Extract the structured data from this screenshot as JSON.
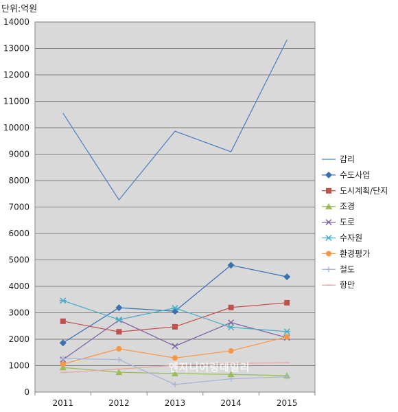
{
  "unit_label": "단위:억원",
  "watermark": "엔지니어링데일리",
  "chart_data": {
    "type": "line",
    "categories": [
      "2011",
      "2012",
      "2013",
      "2014",
      "2015"
    ],
    "ylim": [
      0,
      14000
    ],
    "yticks": [
      0,
      1000,
      2000,
      3000,
      4000,
      5000,
      6000,
      7000,
      8000,
      9000,
      10000,
      11000,
      12000,
      13000,
      14000
    ],
    "grid": true,
    "legend_position": "right",
    "series": [
      {
        "name": "감리",
        "color": "#4F81BD",
        "marker": "none",
        "values": [
          10550,
          7270,
          9870,
          9090,
          13320
        ]
      },
      {
        "name": "수도사업",
        "color": "#3A6FB0",
        "marker": "diamond",
        "values": [
          1860,
          3190,
          3060,
          4800,
          4360
        ]
      },
      {
        "name": "도시계획/단지",
        "color": "#C0504D",
        "marker": "square",
        "values": [
          2680,
          2280,
          2470,
          3200,
          3380
        ]
      },
      {
        "name": "조경",
        "color": "#9BBB59",
        "marker": "triangle",
        "values": [
          930,
          750,
          700,
          670,
          620
        ]
      },
      {
        "name": "도로",
        "color": "#8064A2",
        "marker": "x",
        "values": [
          1230,
          2720,
          1740,
          2630,
          2060
        ]
      },
      {
        "name": "수자원",
        "color": "#4BACC6",
        "marker": "star",
        "values": [
          3460,
          2740,
          3180,
          2450,
          2290
        ]
      },
      {
        "name": "환경평가",
        "color": "#F79646",
        "marker": "circle",
        "values": [
          1060,
          1640,
          1290,
          1560,
          2090
        ]
      },
      {
        "name": "철도",
        "color": "#A5B6D6",
        "marker": "plus",
        "values": [
          1270,
          1230,
          290,
          500,
          580
        ]
      },
      {
        "name": "항만",
        "color": "#E6A5A4",
        "marker": "dash",
        "values": [
          740,
          870,
          1010,
          1080,
          1110
        ]
      }
    ]
  }
}
